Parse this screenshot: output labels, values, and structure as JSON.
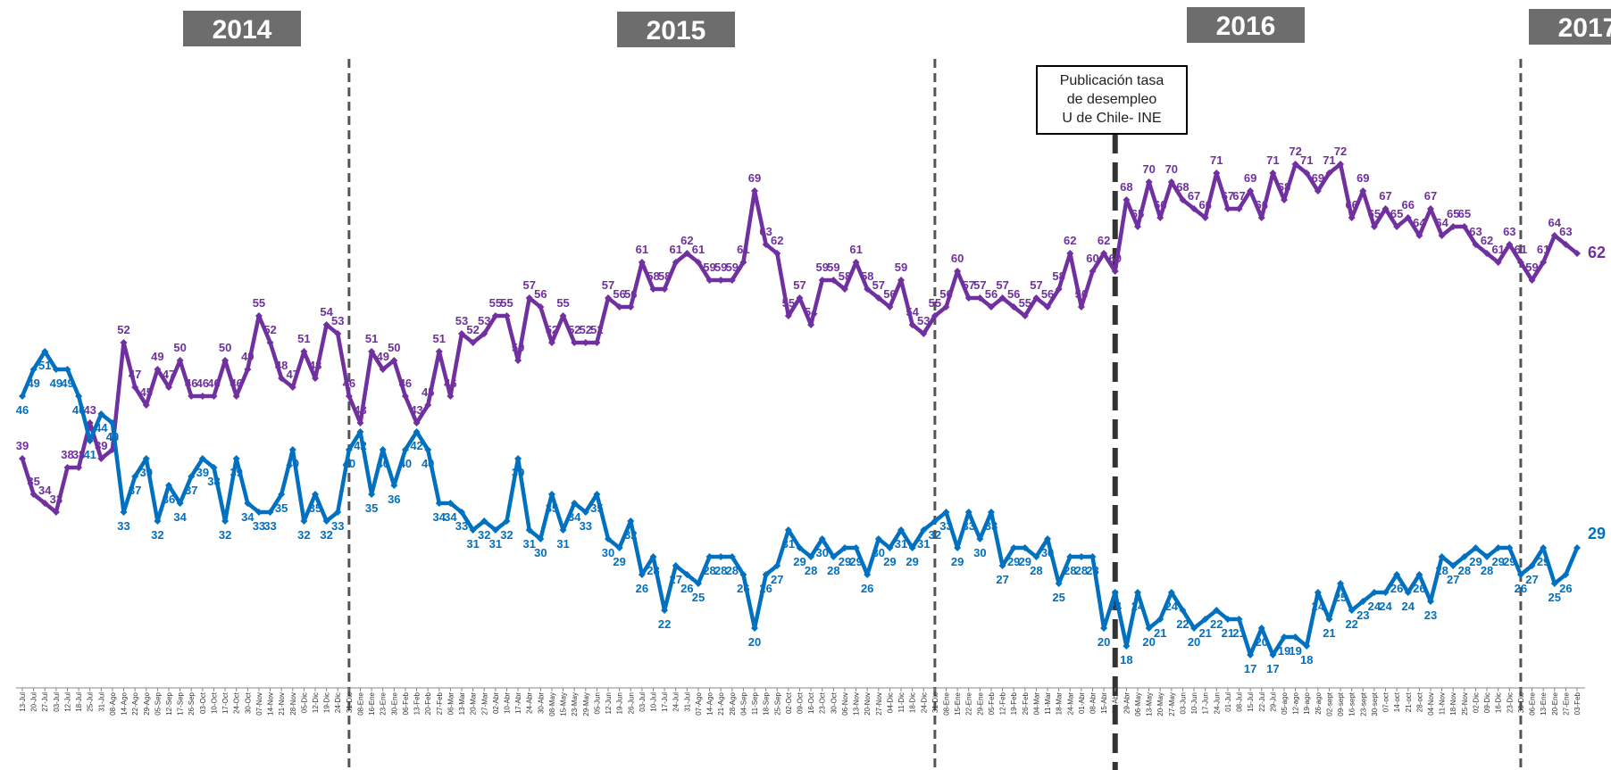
{
  "chart_data": {
    "type": "line",
    "year_labels": [
      "2014",
      "2015",
      "2016",
      "2017"
    ],
    "annotation": [
      "Publicación tasa",
      "de desempleo",
      "U de Chile- INE"
    ],
    "categories": [
      "13-Jul",
      "20-Jul",
      "27-Jul",
      "03-Jul",
      "12-Jul",
      "18-Jul",
      "25-Jul",
      "31-Jul",
      "08-Ago",
      "14-Ago",
      "22-Ago",
      "29-Ago",
      "05-Sep",
      "12-Sep",
      "17-Sep",
      "26-Sep",
      "03-Oct",
      "10-Oct",
      "17-Oct",
      "24-Oct",
      "30-Oct",
      "07-Nov",
      "14-Nov",
      "21-Nov",
      "28-Nov",
      "05-Dic",
      "12-Dic",
      "19-Dic",
      "24-Dic",
      "31-Dic",
      "08-Ene",
      "16-Ene",
      "23-Ene",
      "30-Ene",
      "06-Feb",
      "13-Feb",
      "20-Feb",
      "27-Feb",
      "06-Mar",
      "13-Mar",
      "20-Mar",
      "27-Mar",
      "02-Abr",
      "10-Abr",
      "17-Abr",
      "24-Abr",
      "30-Abr",
      "08-May",
      "15-May",
      "23-May",
      "29-May",
      "05-Jun",
      "12-Jun",
      "19-Jun",
      "26-Jun",
      "03-Jul",
      "10-Jul",
      "17-Jul",
      "24-Jul",
      "31-Jul",
      "07-Ago",
      "14-Ago",
      "21-Ago",
      "28-Ago",
      "04-Sep",
      "11-Sep",
      "18-Sep",
      "25-Sep",
      "02-Oct",
      "09-Oct",
      "16-Oct",
      "23-Oct",
      "30-Oct",
      "06-Nov",
      "13-Nov",
      "20-Nov",
      "27-Nov",
      "04-Dic",
      "11-Dic",
      "18-Dic",
      "24-Dic",
      "31-Dic",
      "08-Ene",
      "15-Ene",
      "22-Ene",
      "29-Ene",
      "05-Feb",
      "12-Feb",
      "19-Feb",
      "26-Feb",
      "04-Mar",
      "11-Mar",
      "18-Mar",
      "24-Mar",
      "01-Abr",
      "08-Abr",
      "15-Abr",
      "22-Abr",
      "29-Abr",
      "06-May",
      "13-May",
      "20-May",
      "27-May",
      "03-Jun",
      "10-Jun",
      "17-Jun",
      "24-Jun",
      "01-Jul",
      "08-Jul",
      "15-Jul",
      "22-Jul",
      "29-Jul",
      "05-ago",
      "12-ago",
      "19-ago",
      "26-ago",
      "02-sept",
      "09-sept",
      "16-sept",
      "23-sept",
      "30-sept",
      "07-oct",
      "14-oct",
      "21-oct",
      "28-oct",
      "04-Nov",
      "11-Nov",
      "18-Nov",
      "25-Nov",
      "02-Dic",
      "09-Dic",
      "16-Dic",
      "23-Dic",
      "30-Dic",
      "06-Ene",
      "13-Ene",
      "20-Ene",
      "27-Ene",
      "03-Feb"
    ],
    "series": [
      {
        "color": "#7030a0",
        "values": [
          39,
          35,
          34,
          33,
          38,
          38,
          43,
          39,
          40,
          52,
          47,
          45,
          49,
          47,
          50,
          46,
          46,
          46,
          50,
          46,
          49,
          55,
          52,
          48,
          47,
          51,
          48,
          54,
          53,
          46,
          43,
          51,
          49,
          50,
          46,
          43,
          45,
          51,
          46,
          53,
          52,
          53,
          55,
          55,
          50,
          57,
          56,
          52,
          55,
          52,
          52,
          52,
          57,
          56,
          56,
          61,
          58,
          58,
          61,
          62,
          61,
          59,
          59,
          59,
          61,
          69,
          63,
          62,
          55,
          57,
          54,
          59,
          59,
          58,
          61,
          58,
          57,
          56,
          59,
          54,
          53,
          55,
          56,
          60,
          57,
          57,
          56,
          57,
          56,
          55,
          57,
          56,
          58,
          62,
          56,
          60,
          62,
          60,
          68,
          65,
          70,
          66,
          70,
          68,
          67,
          66,
          71,
          67,
          67,
          69,
          66,
          71,
          68,
          72,
          71,
          69,
          71,
          72,
          66,
          69,
          65,
          67,
          65,
          66,
          64,
          67,
          64,
          65,
          65,
          63,
          62,
          61,
          63,
          61,
          59,
          61,
          64,
          63,
          62
        ]
      },
      {
        "color": "#0070c0",
        "values": [
          46,
          49,
          51,
          49,
          49,
          46,
          41,
          44,
          43,
          33,
          37,
          39,
          32,
          36,
          34,
          37,
          39,
          38,
          32,
          39,
          34,
          33,
          33,
          35,
          40,
          32,
          35,
          32,
          33,
          40,
          42,
          35,
          40,
          36,
          40,
          42,
          40,
          34,
          34,
          33,
          31,
          32,
          31,
          32,
          39,
          31,
          30,
          35,
          31,
          34,
          33,
          35,
          30,
          29,
          32,
          26,
          28,
          22,
          27,
          26,
          25,
          28,
          28,
          28,
          26,
          20,
          26,
          27,
          31,
          29,
          28,
          30,
          28,
          29,
          29,
          26,
          30,
          29,
          31,
          29,
          31,
          32,
          33,
          29,
          33,
          30,
          33,
          27,
          29,
          29,
          28,
          30,
          25,
          28,
          28,
          28,
          20,
          24,
          18,
          24,
          20,
          21,
          24,
          22,
          20,
          21,
          22,
          21,
          21,
          17,
          20,
          17,
          19,
          19,
          18,
          24,
          21,
          25,
          22,
          23,
          24,
          24,
          26,
          24,
          26,
          23,
          28,
          27,
          28,
          29,
          28,
          29,
          29,
          26,
          27,
          29,
          25,
          26,
          29
        ]
      }
    ]
  }
}
